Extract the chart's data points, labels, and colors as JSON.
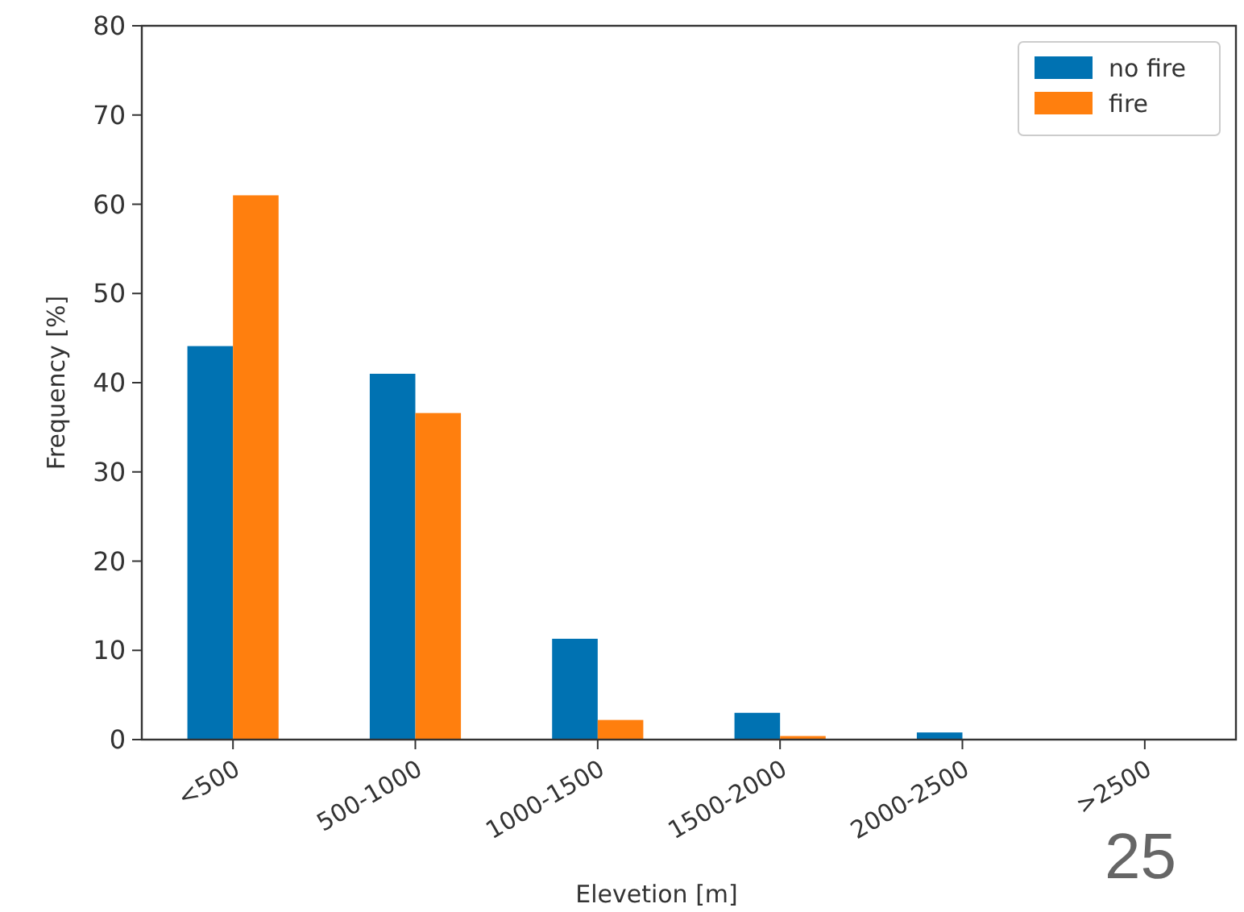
{
  "chart_data": {
    "type": "bar",
    "xlabel": "Elevetion [m]",
    "ylabel": "Frequency [%]",
    "categories": [
      "<500",
      "500-1000",
      "1000-1500",
      "1500-2000",
      "2000-2500",
      ">2500"
    ],
    "series": [
      {
        "name": "no fire",
        "color": "#0072b2",
        "values": [
          44.1,
          41.0,
          11.3,
          3.0,
          0.8,
          0
        ]
      },
      {
        "name": "fire",
        "color": "#ff7f0e",
        "values": [
          61.0,
          36.6,
          2.2,
          0.4,
          0,
          0
        ]
      }
    ],
    "ylim": [
      0,
      80
    ],
    "yticks": [
      0,
      10,
      20,
      30,
      40,
      50,
      60,
      70,
      80
    ],
    "legend": "top right",
    "grid": false,
    "annotations": [
      "25"
    ]
  }
}
